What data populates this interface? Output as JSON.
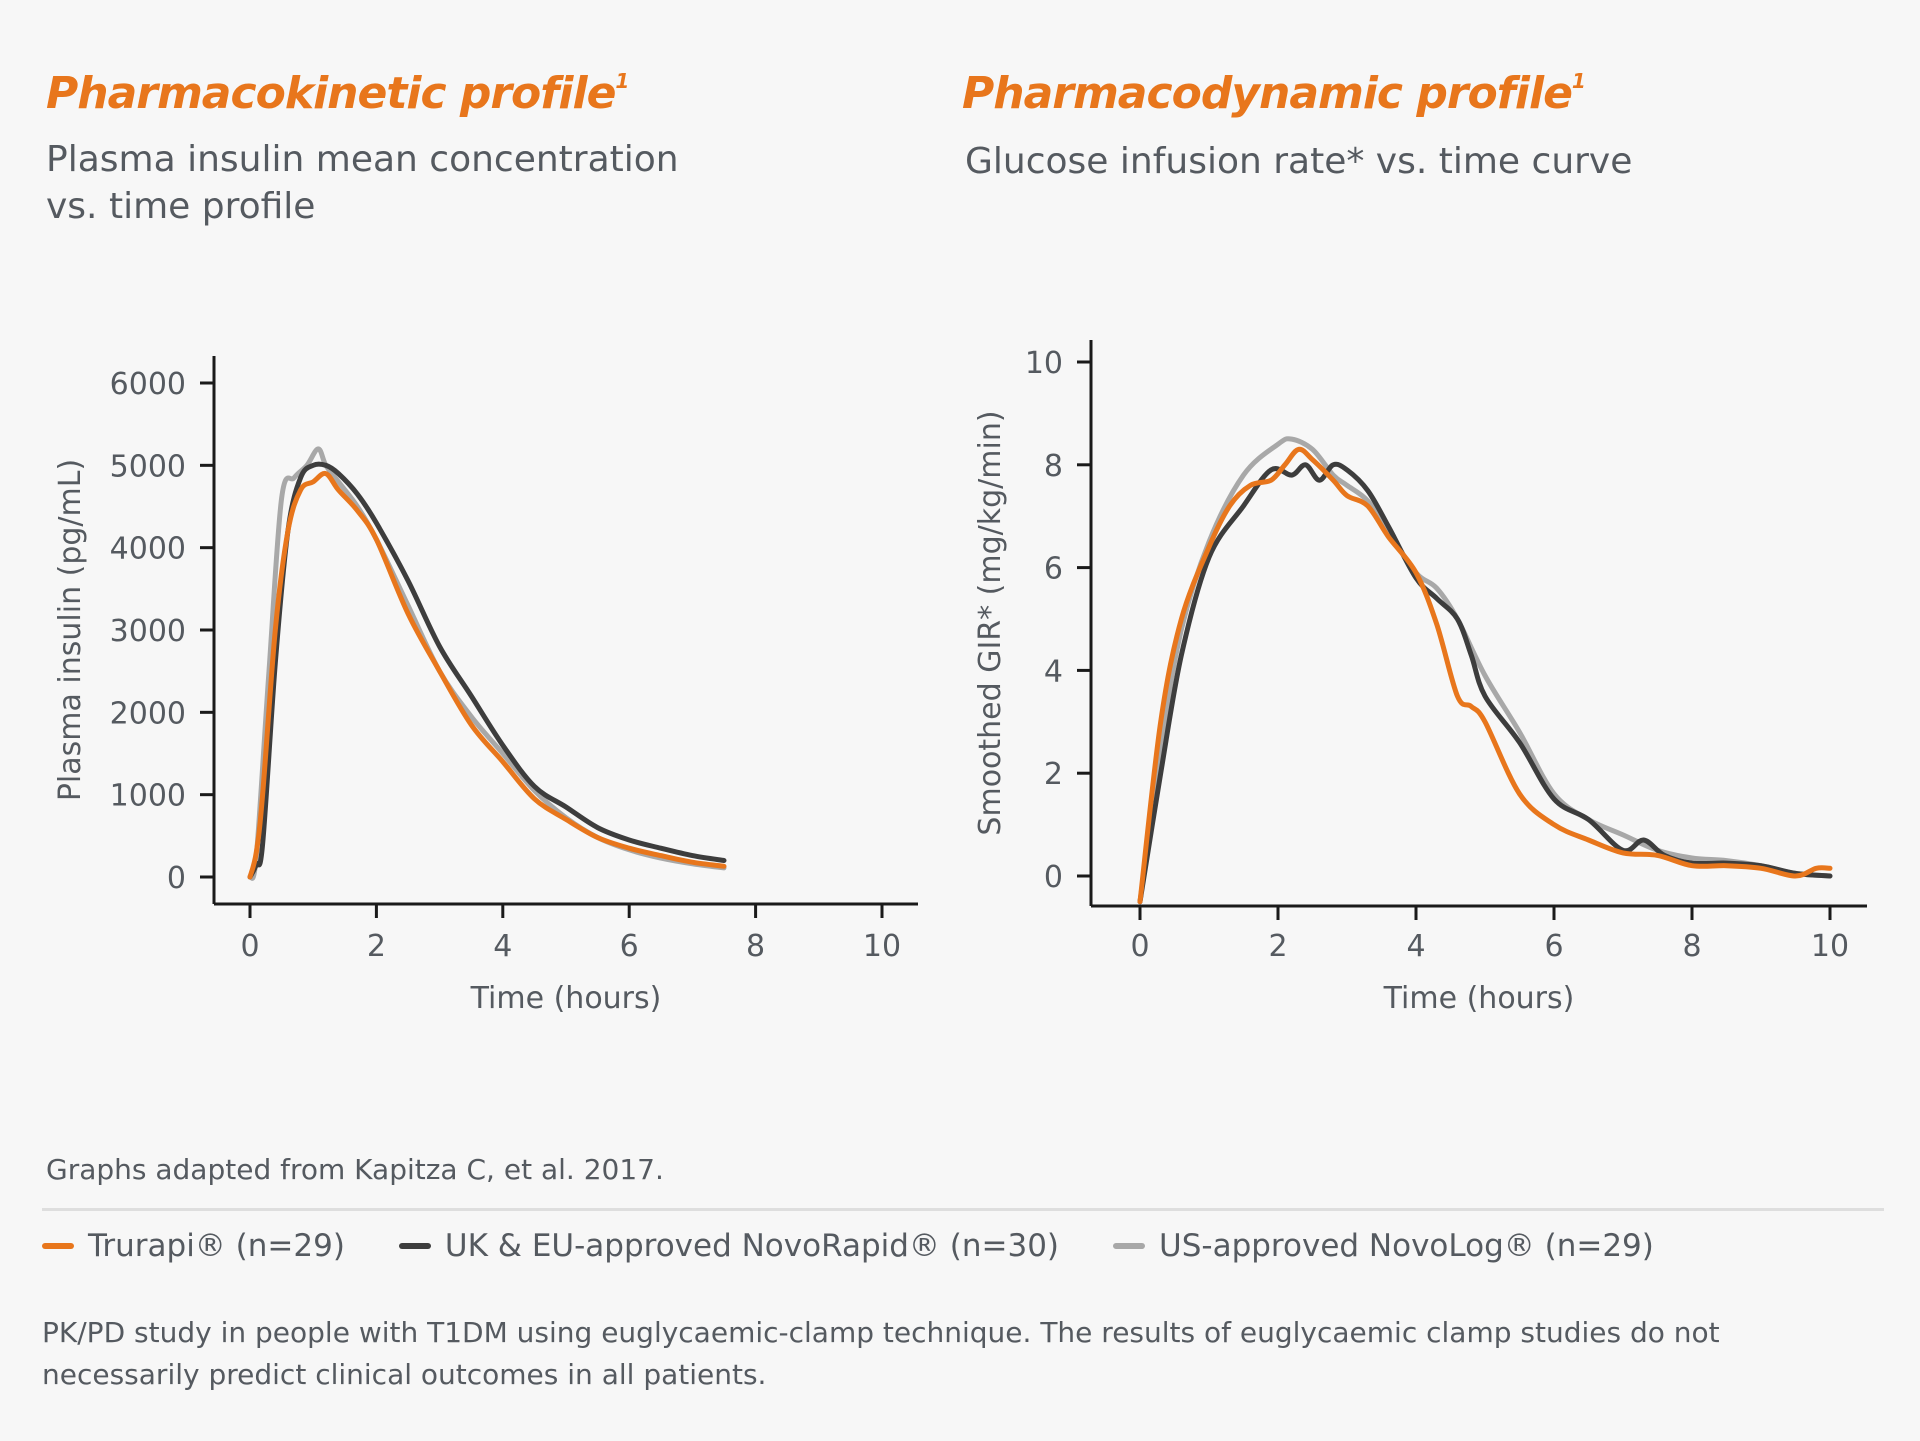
{
  "pk": {
    "title": "Pharmacokinetic profile",
    "title_sup": "1",
    "subtitle": "Plasma insulin mean concentration vs. time profile"
  },
  "pd": {
    "title": "Pharmacodynamic profile",
    "title_sup": "1",
    "subtitle": "Glucose infusion rate* vs. time curve"
  },
  "source_note": "Graphs adapted from Kapitza C, et al. 2017.",
  "legend": [
    {
      "label": "Trurapi® (n=29)",
      "color": "#e8761c"
    },
    {
      "label": "UK & EU-approved NovoRapid® (n=30)",
      "color": "#3d3d3d"
    },
    {
      "label": "US-approved NovoLog® (n=29)",
      "color": "#a8a8a8"
    }
  ],
  "footnote": "PK/PD study in people with T1DM using euglycaemic-clamp technique. The results of euglycaemic clamp studies do not necessarily predict clinical outcomes in all patients.",
  "colors": {
    "accent": "#e8761c",
    "dark": "#3d3d3d",
    "light": "#a8a8a8",
    "axis": "#1a1a1a"
  },
  "chart_data": [
    {
      "id": "pk",
      "type": "line",
      "xlabel": "Time (hours)",
      "ylabel": "Plasma insulin (pg/mL)",
      "xlim": [
        0,
        10
      ],
      "ylim": [
        0,
        6000
      ],
      "xticks": [
        0,
        2,
        4,
        6,
        8,
        10
      ],
      "yticks": [
        0,
        1000,
        2000,
        3000,
        4000,
        5000,
        6000
      ],
      "series": [
        {
          "name": "US-approved NovoLog® (n=29)",
          "color": "#a8a8a8",
          "x": [
            0,
            0.1,
            0.3,
            0.5,
            0.7,
            0.9,
            1.08,
            1.2,
            1.4,
            1.7,
            2.0,
            2.5,
            3.0,
            3.5,
            4.0,
            4.5,
            5.0,
            5.5,
            6.0,
            6.5,
            7.0,
            7.5
          ],
          "y": [
            0,
            250,
            2500,
            4600,
            4850,
            5000,
            5200,
            5000,
            4800,
            4500,
            4100,
            3300,
            2500,
            1950,
            1500,
            1050,
            720,
            480,
            330,
            230,
            160,
            110
          ]
        },
        {
          "name": "UK & EU-approved NovoRapid® (n=30)",
          "color": "#3d3d3d",
          "x": [
            0,
            0.1,
            0.2,
            0.4,
            0.6,
            0.8,
            1.0,
            1.2,
            1.4,
            1.7,
            2.0,
            2.5,
            3.0,
            3.5,
            4.0,
            4.5,
            5.0,
            5.5,
            6.0,
            6.5,
            7.0,
            7.5
          ],
          "y": [
            0,
            150,
            400,
            2600,
            4200,
            4850,
            5000,
            5000,
            4900,
            4650,
            4300,
            3600,
            2800,
            2200,
            1600,
            1100,
            850,
            600,
            450,
            350,
            260,
            200
          ]
        },
        {
          "name": "Trurapi® (n=29)",
          "color": "#e8761c",
          "x": [
            0,
            0.1,
            0.2,
            0.4,
            0.6,
            0.8,
            1.0,
            1.2,
            1.4,
            1.7,
            2.0,
            2.5,
            3.0,
            3.5,
            4.0,
            4.5,
            5.0,
            5.5,
            6.0,
            6.5,
            7.0,
            7.5
          ],
          "y": [
            0,
            300,
            1000,
            3000,
            4200,
            4700,
            4800,
            4900,
            4700,
            4450,
            4100,
            3200,
            2500,
            1850,
            1400,
            950,
            700,
            480,
            350,
            260,
            180,
            130
          ]
        }
      ]
    },
    {
      "id": "pd",
      "type": "line",
      "xlabel": "Time (hours)",
      "ylabel": "Smoothed GIR* (mg/kg/min)",
      "xlim": [
        0,
        10
      ],
      "ylim": [
        0,
        10
      ],
      "xticks": [
        0,
        2,
        4,
        6,
        8,
        10
      ],
      "yticks": [
        0,
        2,
        4,
        6,
        8,
        10
      ],
      "series": [
        {
          "name": "US-approved NovoLog® (n=29)",
          "color": "#a8a8a8",
          "x": [
            0,
            0.3,
            0.6,
            1.0,
            1.5,
            2.0,
            2.2,
            2.5,
            2.8,
            3.0,
            3.3,
            3.6,
            4.0,
            4.3,
            4.6,
            5.0,
            5.5,
            6.0,
            6.5,
            7.0,
            7.5,
            8.0,
            8.5,
            9.0,
            9.5,
            10.0
          ],
          "y": [
            -0.5,
            2.5,
            4.8,
            6.5,
            7.8,
            8.4,
            8.5,
            8.3,
            7.8,
            7.6,
            7.3,
            6.7,
            5.9,
            5.6,
            5.0,
            3.9,
            2.8,
            1.6,
            1.1,
            0.8,
            0.5,
            0.35,
            0.3,
            0.2,
            0.05,
            0.0
          ]
        },
        {
          "name": "UK & EU-approved NovoRapid® (n=30)",
          "color": "#3d3d3d",
          "x": [
            0,
            0.3,
            0.6,
            1.0,
            1.5,
            1.9,
            2.2,
            2.4,
            2.6,
            2.8,
            3.0,
            3.3,
            3.6,
            4.0,
            4.3,
            4.6,
            4.8,
            5.0,
            5.5,
            6.0,
            6.5,
            7.0,
            7.3,
            7.6,
            8.0,
            8.5,
            9.0,
            9.5,
            10.0
          ],
          "y": [
            -0.5,
            2.0,
            4.3,
            6.2,
            7.2,
            7.9,
            7.8,
            8.0,
            7.7,
            8.0,
            7.9,
            7.5,
            6.8,
            5.8,
            5.4,
            5.0,
            4.3,
            3.5,
            2.6,
            1.5,
            1.1,
            0.5,
            0.7,
            0.4,
            0.25,
            0.25,
            0.2,
            0.05,
            0.0
          ]
        },
        {
          "name": "Trurapi® (n=29)",
          "color": "#e8761c",
          "x": [
            0,
            0.3,
            0.6,
            1.0,
            1.3,
            1.6,
            1.9,
            2.1,
            2.3,
            2.5,
            2.8,
            3.0,
            3.3,
            3.6,
            4.0,
            4.3,
            4.6,
            4.8,
            5.0,
            5.5,
            6.0,
            6.5,
            7.0,
            7.5,
            8.0,
            8.5,
            9.0,
            9.5,
            9.8,
            10.0
          ],
          "y": [
            -0.5,
            3.0,
            5.0,
            6.4,
            7.2,
            7.6,
            7.7,
            8.0,
            8.3,
            8.1,
            7.7,
            7.4,
            7.2,
            6.6,
            5.9,
            4.9,
            3.5,
            3.3,
            3.0,
            1.6,
            1.0,
            0.7,
            0.45,
            0.4,
            0.2,
            0.2,
            0.15,
            0.0,
            0.15,
            0.15
          ]
        }
      ]
    }
  ]
}
